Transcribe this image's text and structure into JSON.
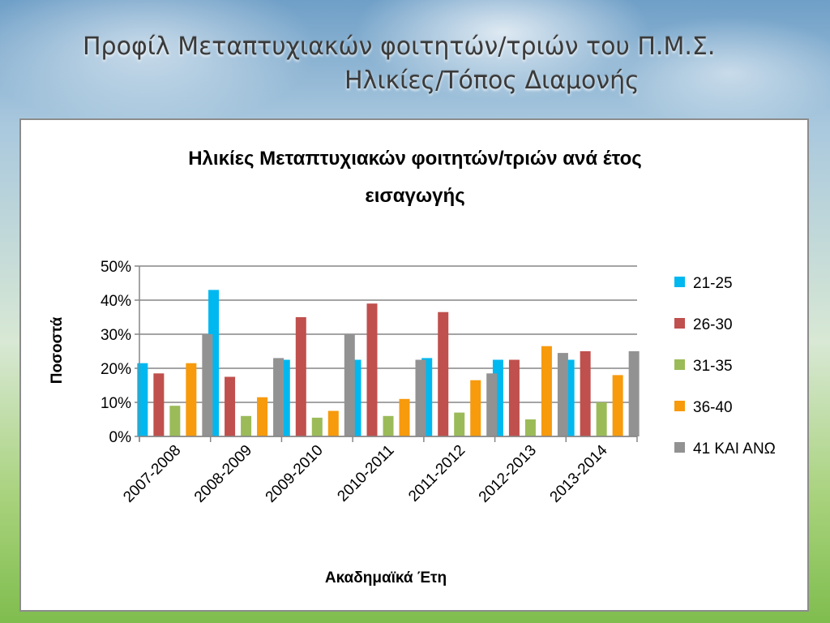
{
  "slide": {
    "title_line1": "Προφίλ Μεταπτυχιακών φοιτητών/τριών του Π.Μ.Σ.",
    "title_line2": "Ηλικίες/Τόπος Διαμονής"
  },
  "chart_data": {
    "type": "bar",
    "title": "Ηλικίες Μεταπτυχιακών φοιτητών/τριών ανά έτος εισαγωγής",
    "title_lines": [
      "Ηλικίες Μεταπτυχιακών φοιτητών/τριών ανά έτος",
      "εισαγωγής"
    ],
    "xlabel": "Ακαδημαϊκά Έτη",
    "ylabel": "Ποσοστά",
    "ylim": [
      0,
      50
    ],
    "yticks": [
      "0%",
      "10%",
      "20%",
      "30%",
      "40%",
      "50%"
    ],
    "y_unit": "%",
    "grid": true,
    "legend_position": "right",
    "categories": [
      "2007-2008",
      "2008-2009",
      "2009-2010",
      "2010-2011",
      "2011-2012",
      "2012-2013",
      "2013-2014"
    ],
    "series": [
      {
        "name": "21-25",
        "color": "#00b8f0",
        "values": [
          21.5,
          43,
          22.5,
          22.5,
          23,
          22.5,
          22.5
        ]
      },
      {
        "name": "26-30",
        "color": "#c0504d",
        "values": [
          18.5,
          17.5,
          35,
          39,
          36.5,
          22.5,
          25
        ]
      },
      {
        "name": "31-35",
        "color": "#9bbb59",
        "values": [
          9,
          6,
          5.5,
          6,
          7,
          5,
          10
        ]
      },
      {
        "name": "36-40",
        "color": "#f79a0c",
        "values": [
          21.5,
          11.5,
          7.5,
          11,
          16.5,
          26.5,
          18
        ]
      },
      {
        "name": "41 ΚΑΙ ΑΝΩ",
        "color": "#929292",
        "values": [
          30,
          23,
          30,
          22.5,
          18.5,
          24.5,
          25
        ]
      }
    ]
  }
}
